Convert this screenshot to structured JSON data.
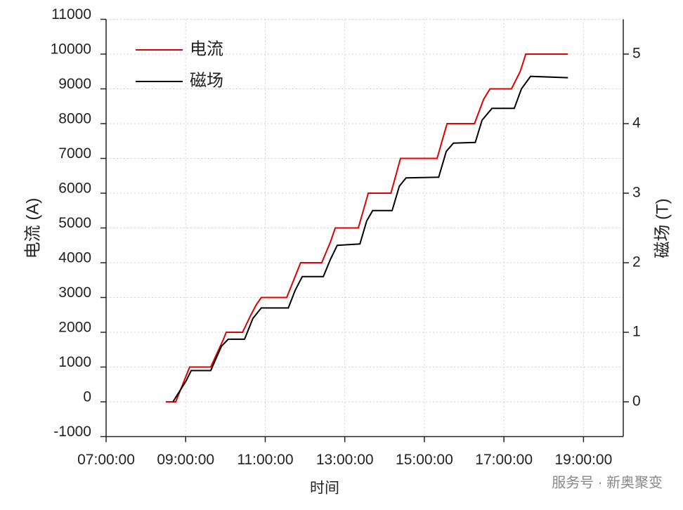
{
  "chart_data": {
    "type": "line",
    "x_label": "时间",
    "y_label": "电流 (A)",
    "y2_label": "磁场 (T)",
    "watermark": "服务号 · 新奥聚变",
    "xlim": [
      7,
      20
    ],
    "xticks": [
      {
        "value": 7,
        "label": "07:00:00"
      },
      {
        "value": 9,
        "label": "09:00:00"
      },
      {
        "value": 11,
        "label": "11:00:00"
      },
      {
        "value": 13,
        "label": "13:00:00"
      },
      {
        "value": 15,
        "label": "15:00:00"
      },
      {
        "value": 17,
        "label": "17:00:00"
      },
      {
        "value": 19,
        "label": "19:00:00"
      }
    ],
    "ylim": [
      -1000,
      11000
    ],
    "yticks": [
      -1000,
      0,
      1000,
      2000,
      3000,
      4000,
      5000,
      6000,
      7000,
      8000,
      9000,
      10000,
      11000
    ],
    "y2lim": [
      -0.5,
      5.5
    ],
    "y2ticks": [
      0,
      1,
      2,
      3,
      4,
      5
    ],
    "grid": true,
    "legend": "upper left",
    "series": [
      {
        "name": "电流",
        "color": "#e00000",
        "x": [
          8.5,
          8.75,
          8.96,
          9.1,
          9.63,
          9.95,
          10.02,
          10.43,
          10.64,
          10.78,
          10.9,
          11.54,
          11.75,
          11.89,
          12.42,
          12.64,
          12.76,
          13.34,
          13.59,
          14.16,
          14.4,
          15.32,
          15.57,
          16.26,
          16.49,
          16.65,
          17.19,
          17.41,
          17.55,
          18.61
        ],
        "values": [
          0,
          0,
          600,
          1000,
          1000,
          1800,
          2000,
          2000,
          2500,
          2800,
          3000,
          3000,
          3600,
          4000,
          4000,
          4600,
          5000,
          5000,
          6000,
          6000,
          7000,
          7000,
          8000,
          8000,
          8700,
          9000,
          9000,
          9500,
          10000,
          10000
        ]
      },
      {
        "name": "磁场",
        "color": "#000000",
        "axis": "y2",
        "x": [
          8.68,
          9.01,
          9.14,
          9.63,
          9.9,
          10.07,
          10.48,
          10.69,
          10.9,
          11.58,
          11.75,
          11.93,
          12.46,
          12.64,
          12.81,
          13.38,
          13.55,
          13.7,
          14.19,
          14.37,
          14.54,
          15.36,
          15.55,
          15.73,
          16.28,
          16.45,
          16.7,
          17.26,
          17.44,
          17.67,
          18.61
        ],
        "values": [
          0,
          0.3,
          0.45,
          0.45,
          0.8,
          0.9,
          0.9,
          1.2,
          1.35,
          1.35,
          1.6,
          1.8,
          1.8,
          2.05,
          2.25,
          2.27,
          2.6,
          2.75,
          2.75,
          3.1,
          3.22,
          3.23,
          3.6,
          3.72,
          3.73,
          4.05,
          4.22,
          4.22,
          4.5,
          4.68,
          4.66
        ]
      }
    ]
  }
}
